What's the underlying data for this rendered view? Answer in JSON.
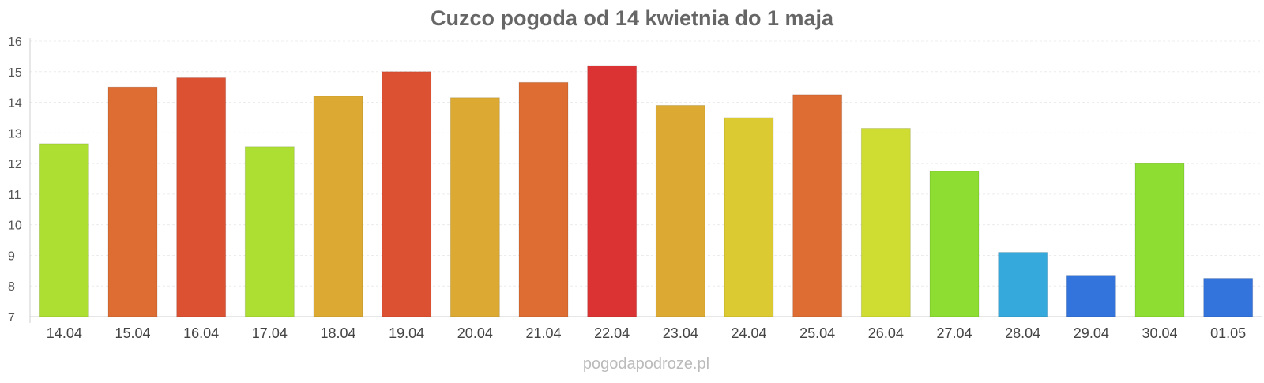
{
  "source_label": "pogodapodroze.pl",
  "chart_data": {
    "type": "bar",
    "title": "Cuzco pogoda od 14 kwietnia do 1 maja",
    "xlabel": "",
    "ylabel": "",
    "ylim": [
      7,
      16
    ],
    "y_ticks": [
      7,
      8,
      9,
      10,
      11,
      12,
      13,
      14,
      15,
      16
    ],
    "grid": true,
    "legend": "none",
    "categories": [
      "14.04",
      "15.04",
      "16.04",
      "17.04",
      "18.04",
      "19.04",
      "20.04",
      "21.04",
      "22.04",
      "23.04",
      "24.04",
      "25.04",
      "26.04",
      "27.04",
      "28.04",
      "29.04",
      "30.04",
      "01.05"
    ],
    "values": [
      12.65,
      14.5,
      14.8,
      12.55,
      14.2,
      15.0,
      14.15,
      14.65,
      15.2,
      13.9,
      13.5,
      14.25,
      13.15,
      11.75,
      9.1,
      8.35,
      12.0,
      8.25
    ],
    "colors": [
      "#addf32",
      "#de6d33",
      "#dd5133",
      "#addf32",
      "#dcaa32",
      "#dd5133",
      "#dcaa32",
      "#de6d33",
      "#db3333",
      "#dcaa32",
      "#dcca32",
      "#de6d33",
      "#cfdd32",
      "#8ddd32",
      "#36a9dc",
      "#3374dc",
      "#8ddd32",
      "#3374dc"
    ]
  }
}
